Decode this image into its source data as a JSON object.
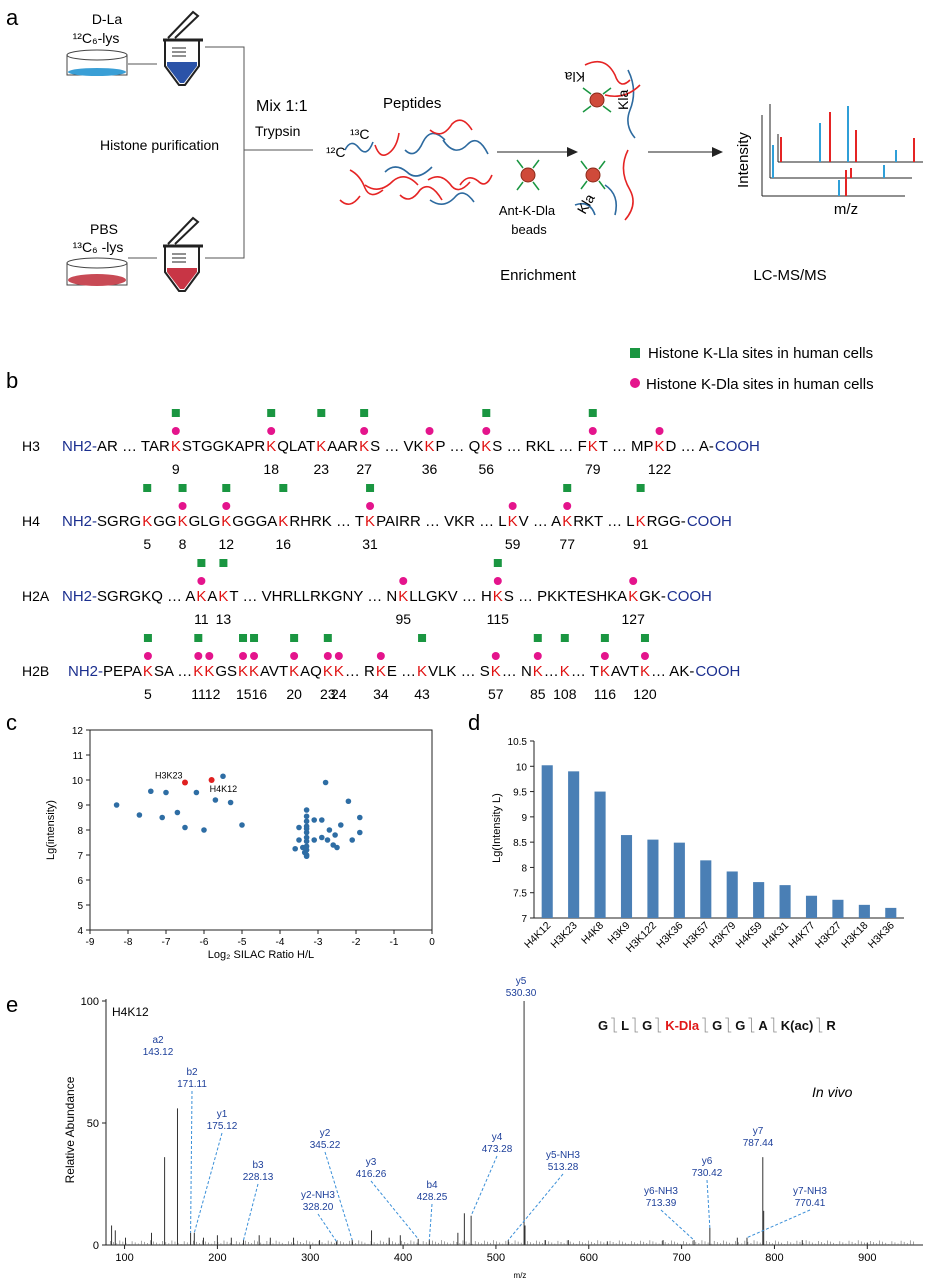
{
  "panel_labels": {
    "a": "a",
    "b": "b",
    "c": "c",
    "d": "d",
    "e": "e"
  },
  "panel_a": {
    "top_sample_line1": "D-La",
    "top_sample_line2": "¹²C₆-lys",
    "bottom_sample_line1": "PBS",
    "bottom_sample_line2": "¹³C₆ -lys",
    "histone_purification": "Histone purification",
    "mix": "Mix 1:1",
    "trypsin": "Trypsin",
    "peptides": "Peptides",
    "c13": "¹³C",
    "c12": "¹²C",
    "beads_line1": "Ant-K-Dla",
    "beads_line2": "beads",
    "kla": "Kla",
    "enrichment": "Enrichment",
    "lcms": "LC-MS/MS",
    "intensity": "Intensity",
    "mz": "m/z",
    "colors": {
      "blue": "#2f9fd8",
      "red": "#e52424",
      "dish_blue": "#3a9fd6",
      "dish_red": "#c84a55"
    }
  },
  "panel_b": {
    "legend_lla": "Histone K-Lla sites in human cells",
    "legend_dla": "Histone K-Dla sites in human cells",
    "colors": {
      "green": "#1a9641",
      "magenta": "#e4148c",
      "red_k": "#e01010",
      "blue_term": "#1b2f8f"
    },
    "rows": [
      {
        "name": "H3",
        "tokens": [
          [
            "b",
            "NH2-"
          ],
          [
            "t",
            "AR … TAR"
          ],
          [
            "k",
            "9",
            1,
            1
          ],
          [
            "t",
            "STGGKAPR"
          ],
          [
            "k",
            "18",
            1,
            1
          ],
          [
            "t",
            "QLAT"
          ],
          [
            "k",
            "23",
            1,
            0
          ],
          [
            "t",
            "AAR"
          ],
          [
            "k",
            "27",
            1,
            1
          ],
          [
            "t",
            "S … VK"
          ],
          [
            "k",
            "36",
            0,
            1
          ],
          [
            "t",
            "P … Q"
          ],
          [
            "k",
            "56",
            1,
            1
          ],
          [
            "t",
            "S … RKL … F"
          ],
          [
            "k",
            "79",
            1,
            1
          ],
          [
            "t",
            "T … MP"
          ],
          [
            "k",
            "122",
            0,
            1
          ],
          [
            "t",
            "D … A-"
          ],
          [
            "b",
            "COOH"
          ]
        ]
      },
      {
        "name": "H4",
        "tokens": [
          [
            "b",
            "NH2-"
          ],
          [
            "t",
            "SGRG"
          ],
          [
            "k",
            "5",
            1,
            0
          ],
          [
            "t",
            "GG"
          ],
          [
            "k",
            "8",
            1,
            1
          ],
          [
            "t",
            "GLG"
          ],
          [
            "k",
            "12",
            1,
            1
          ],
          [
            "t",
            "GGGA"
          ],
          [
            "k",
            "16",
            1,
            0
          ],
          [
            "t",
            "RHRK … T"
          ],
          [
            "k",
            "31",
            1,
            1
          ],
          [
            "t",
            "PAIRR … VKR … L"
          ],
          [
            "k",
            "59",
            0,
            1
          ],
          [
            "t",
            "V … A"
          ],
          [
            "k",
            "77",
            1,
            1
          ],
          [
            "t",
            "RKT … L"
          ],
          [
            "k",
            "91",
            1,
            0
          ],
          [
            "t",
            "RGG-"
          ],
          [
            "b",
            "COOH"
          ]
        ]
      },
      {
        "name": "H2A",
        "tokens": [
          [
            "b",
            "NH2-"
          ],
          [
            "t",
            "SGRGKQ … A"
          ],
          [
            "k",
            "11",
            1,
            1
          ],
          [
            "t",
            "A"
          ],
          [
            "k",
            "13",
            1,
            0
          ],
          [
            "t",
            "T … VHRLLRKGNY … N"
          ],
          [
            "k",
            "95",
            0,
            1
          ],
          [
            "t",
            "LLGKV … H"
          ],
          [
            "k",
            "115",
            1,
            1
          ],
          [
            "t",
            "S … PKKTESHKA"
          ],
          [
            "k",
            "127",
            0,
            1
          ],
          [
            "t",
            "GK-"
          ],
          [
            "b",
            "COOH"
          ]
        ]
      },
      {
        "name": "H2B",
        "tokens": [
          [
            "b",
            "NH2-"
          ],
          [
            "t",
            "PEPA"
          ],
          [
            "k",
            "5",
            1,
            1
          ],
          [
            "t",
            "SA …"
          ],
          [
            "k",
            "11",
            1,
            1
          ],
          [
            "k",
            "12",
            0,
            1
          ],
          [
            "t",
            "GS"
          ],
          [
            "k",
            "15",
            1,
            1
          ],
          [
            "k",
            "16",
            1,
            1
          ],
          [
            "t",
            "AVT"
          ],
          [
            "k",
            "20",
            1,
            1
          ],
          [
            "t",
            "AQ"
          ],
          [
            "k",
            "23",
            1,
            1
          ],
          [
            "k",
            "24",
            0,
            1
          ],
          [
            "t",
            "… R"
          ],
          [
            "k",
            "34",
            0,
            1
          ],
          [
            "t",
            "E … "
          ],
          [
            "k",
            "43",
            1,
            0
          ],
          [
            "t",
            "VLK … S"
          ],
          [
            "k",
            "57",
            0,
            1
          ],
          [
            "t",
            "… N"
          ],
          [
            "k",
            "85",
            1,
            1
          ],
          [
            "t",
            "…"
          ],
          [
            "k",
            "108",
            1,
            0
          ],
          [
            "t",
            "… T"
          ],
          [
            "k",
            "116",
            1,
            1
          ],
          [
            "t",
            "AVT"
          ],
          [
            "k",
            "120",
            1,
            1
          ],
          [
            "t",
            "… AK-"
          ],
          [
            "b",
            "COOH"
          ]
        ]
      }
    ],
    "h2b_numbers": [
      "5",
      "1112",
      "1516",
      "20",
      "23",
      "24",
      "34",
      "43",
      "57",
      "85",
      "108",
      "116",
      "120"
    ]
  },
  "panel_c": {
    "xlabel": "Log₂ SILAC Ratio H/L",
    "ylabel": "Lg(intensity)",
    "xlim": [
      -9,
      0
    ],
    "ylim": [
      4,
      12
    ],
    "xticks": [
      "-9",
      "-8",
      "-7",
      "-6",
      "-5",
      "-4",
      "-3",
      "-2",
      "-1",
      "0"
    ],
    "yticks": [
      "4",
      "5",
      "6",
      "7",
      "8",
      "9",
      "10",
      "11",
      "12"
    ],
    "highlight_labels": [
      "H3K23",
      "H4K12"
    ],
    "colors": {
      "point": "#2e6da4",
      "highlight": "#e02020"
    }
  },
  "panel_d": {
    "ylabel": "Lg(Intensity L)",
    "yticks": [
      "7",
      "7.5",
      "8",
      "8.5",
      "9",
      "9.5",
      "10",
      "10.5"
    ],
    "colors": {
      "bar": "#4a7fb5"
    }
  },
  "panel_e": {
    "sample": "H4K12",
    "ylabel": "Relative Abundance",
    "xlabel": "m/z",
    "yticks": [
      "0",
      "50",
      "100"
    ],
    "xticks": [
      "100",
      "200",
      "300",
      "400",
      "500",
      "600",
      "700",
      "800",
      "900"
    ],
    "in_vivo": "In vivo",
    "sequence": [
      [
        "G",
        0
      ],
      [
        "L",
        0
      ],
      [
        "G",
        0
      ],
      [
        "K-Dla",
        1
      ],
      [
        "G",
        0
      ],
      [
        "G",
        0
      ],
      [
        "A",
        0
      ],
      [
        "K(ac)",
        0
      ],
      [
        "R",
        0
      ]
    ],
    "colors": {
      "ion": "#1d3f9a",
      "dash": "#3a8fd8",
      "mod": "#e01818"
    }
  },
  "chart_data": [
    {
      "type": "scatter",
      "xlabel": "Log₂ SILAC Ratio H/L",
      "ylabel": "Lg(intensity)",
      "xlim": [
        -9,
        0
      ],
      "ylim": [
        4,
        12
      ],
      "grid": false,
      "series": [
        {
          "points": [
            [
              -8.3,
              9.0
            ],
            [
              -7.4,
              9.55
            ],
            [
              -7.1,
              8.5
            ],
            [
              -7.0,
              9.5
            ],
            [
              -6.7,
              8.7
            ],
            [
              -6.5,
              8.1
            ],
            [
              -6.2,
              9.5
            ],
            [
              -6.0,
              8.0
            ],
            [
              -5.7,
              9.2
            ],
            [
              -5.5,
              10.15
            ],
            [
              -5.3,
              9.1
            ],
            [
              -5.0,
              8.2
            ],
            [
              -7.7,
              8.6
            ],
            [
              -3.6,
              7.25
            ],
            [
              -3.5,
              7.6
            ],
            [
              -3.4,
              7.3
            ],
            [
              -3.35,
              7.1
            ],
            [
              -3.3,
              8.8
            ],
            [
              -3.3,
              7.9
            ],
            [
              -3.3,
              7.7
            ],
            [
              -3.3,
              7.55
            ],
            [
              -3.3,
              7.35
            ],
            [
              -3.3,
              7.2
            ],
            [
              -3.3,
              7.0
            ],
            [
              -3.3,
              6.95
            ],
            [
              -3.3,
              8.35
            ],
            [
              -3.3,
              8.15
            ],
            [
              -3.3,
              8.05
            ],
            [
              -3.3,
              8.55
            ],
            [
              -3.1,
              8.4
            ],
            [
              -2.9,
              8.4
            ],
            [
              -2.8,
              9.9
            ],
            [
              -2.75,
              7.6
            ],
            [
              -2.7,
              8.0
            ],
            [
              -2.6,
              7.4
            ],
            [
              -2.55,
              7.8
            ],
            [
              -2.5,
              7.3
            ],
            [
              -2.4,
              8.2
            ],
            [
              -2.2,
              9.15
            ],
            [
              -2.1,
              7.6
            ],
            [
              -1.9,
              8.5
            ],
            [
              -1.9,
              7.9
            ],
            [
              -3.5,
              8.1
            ],
            [
              -3.1,
              7.6
            ],
            [
              -2.9,
              7.7
            ]
          ]
        },
        {
          "name": "highlighted",
          "points": [
            [
              -6.5,
              9.9
            ],
            [
              -5.8,
              10.0
            ]
          ],
          "labels": [
            "H3K23",
            "H4K12"
          ]
        }
      ]
    },
    {
      "type": "bar",
      "ylabel": "Lg(Intensity L)",
      "ylim": [
        7,
        10.5
      ],
      "categories": [
        "H4K12",
        "H3K23",
        "H4K8",
        "H3K9",
        "H3K122",
        "H3K36",
        "H3K57",
        "H3K79",
        "H4K59",
        "H4K31",
        "H4K77",
        "H3K27",
        "H3K18",
        "H3K36"
      ],
      "values": [
        10.02,
        9.9,
        9.5,
        8.64,
        8.55,
        8.49,
        8.14,
        7.92,
        7.71,
        7.65,
        7.44,
        7.36,
        7.26,
        7.2
      ]
    },
    {
      "type": "line",
      "title": "H4K12",
      "xlabel": "m/z",
      "ylabel": "Relative Abundance",
      "xlim": [
        80,
        960
      ],
      "ylim": [
        0,
        100
      ],
      "peak_labels": [
        {
          "label": "a2",
          "mz": "143.12",
          "x": 143.12,
          "y": 36
        },
        {
          "label": "b2",
          "mz": "171.11",
          "x": 171.11,
          "y": 5
        },
        {
          "label": "y1",
          "mz": "175.12",
          "x": 175.12,
          "y": 5
        },
        {
          "label": "b3",
          "mz": "228.13",
          "x": 228.13,
          "y": 2
        },
        {
          "label": "y2-NH3",
          "mz": "328.20",
          "x": 328.2,
          "y": 1.5
        },
        {
          "label": "y2",
          "mz": "345.22",
          "x": 345.22,
          "y": 2
        },
        {
          "label": "y3",
          "mz": "416.26",
          "x": 416.26,
          "y": 2.5
        },
        {
          "label": "b4",
          "mz": "428.25",
          "x": 428.25,
          "y": 2
        },
        {
          "label": "y4",
          "mz": "473.28",
          "x": 473.28,
          "y": 12
        },
        {
          "label": "y5-NH3",
          "mz": "513.28",
          "x": 513.28,
          "y": 2
        },
        {
          "label": "y5",
          "mz": "530.30",
          "x": 530.3,
          "y": 100
        },
        {
          "label": "y6-NH3",
          "mz": "713.39",
          "x": 713.39,
          "y": 2
        },
        {
          "label": "y6",
          "mz": "730.42",
          "x": 730.42,
          "y": 7
        },
        {
          "label": "y7-NH3",
          "mz": "770.41",
          "x": 770.41,
          "y": 3
        },
        {
          "label": "y7",
          "mz": "787.44",
          "x": 787.44,
          "y": 36
        }
      ],
      "peaks": [
        [
          86,
          8
        ],
        [
          90,
          6
        ],
        [
          101,
          3
        ],
        [
          129,
          5
        ],
        [
          143.12,
          36
        ],
        [
          157,
          56
        ],
        [
          171.11,
          5
        ],
        [
          175.12,
          5
        ],
        [
          185,
          3
        ],
        [
          200,
          4
        ],
        [
          215,
          3
        ],
        [
          228.13,
          2
        ],
        [
          245,
          4
        ],
        [
          257,
          3
        ],
        [
          282,
          3
        ],
        [
          310,
          2
        ],
        [
          328.2,
          1.5
        ],
        [
          345.22,
          2
        ],
        [
          366,
          6
        ],
        [
          385,
          3
        ],
        [
          397,
          4
        ],
        [
          416.26,
          2.5
        ],
        [
          428.25,
          2
        ],
        [
          459,
          5
        ],
        [
          466,
          13
        ],
        [
          473.28,
          12
        ],
        [
          513.28,
          2
        ],
        [
          530.3,
          100
        ],
        [
          531.3,
          8
        ],
        [
          553,
          2
        ],
        [
          578,
          2
        ],
        [
          620,
          1.5
        ],
        [
          680,
          2
        ],
        [
          713.39,
          2
        ],
        [
          730.42,
          7
        ],
        [
          760,
          3
        ],
        [
          770.41,
          3
        ],
        [
          787.44,
          36
        ],
        [
          788.4,
          14
        ],
        [
          830,
          2
        ],
        [
          900,
          1
        ]
      ]
    }
  ]
}
